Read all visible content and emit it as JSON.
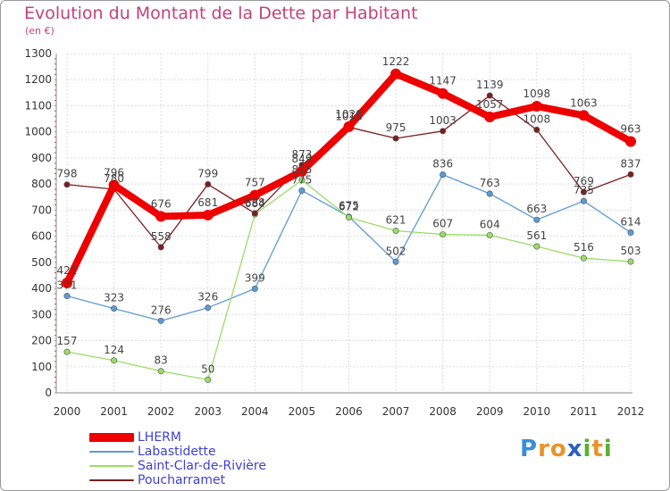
{
  "title": "Evolution du Montant de la Dette par Habitant",
  "subtitle": "(en €)",
  "logo": {
    "letters": [
      "P",
      "r",
      "o",
      "x",
      "i",
      "t",
      "i"
    ],
    "colors": [
      "#3a8ed8",
      "#e8932a",
      "#e8932a",
      "#2a60c0",
      "#5ab030",
      "#e8932a",
      "#5ab030"
    ]
  },
  "chart_data": {
    "type": "line",
    "title": "Evolution du Montant de la Dette par Habitant",
    "ylabel": "(en €)",
    "xlabel": "",
    "x": [
      "2000",
      "2001",
      "2002",
      "2003",
      "2004",
      "2005",
      "2006",
      "2007",
      "2008",
      "2009",
      "2010",
      "2011",
      "2012"
    ],
    "ylim": [
      0,
      1300
    ],
    "yticks": [
      "0",
      "100",
      "200",
      "300",
      "400",
      "500",
      "600",
      "700",
      "800",
      "900",
      "1000",
      "1100",
      "1200",
      "1300"
    ],
    "grid": true,
    "legend": "bottom-left",
    "series": [
      {
        "name": "LHERM",
        "color": "#ee0000",
        "values": [
          421,
          796,
          676,
          681,
          757,
          849,
          1020,
          1222,
          1147,
          1057,
          1098,
          1063,
          963
        ],
        "labels": [
          "421",
          "796",
          "676",
          "681",
          "757",
          "849",
          "1020",
          "1222",
          "1147",
          "1057",
          "1098",
          "1063",
          "963"
        ]
      },
      {
        "name": "Labastidette",
        "color": "#5b9bd5",
        "values": [
          371,
          323,
          276,
          326,
          399,
          775,
          675,
          502,
          836,
          763,
          663,
          735,
          614
        ],
        "labels": [
          "371",
          "323",
          "276",
          "326",
          "399",
          "775",
          "675",
          "502",
          "836",
          "763",
          "663",
          "735",
          "614"
        ]
      },
      {
        "name": "Saint-Clar-de-Rivière",
        "color": "#99dd66",
        "values": [
          157,
          124,
          83,
          50,
          684,
          815,
          672,
          621,
          607,
          604,
          561,
          516,
          503
        ],
        "labels": [
          "157",
          "124",
          "83",
          "50",
          "684",
          "815",
          "672",
          "621",
          "607",
          "604",
          "561",
          "516",
          "503"
        ]
      },
      {
        "name": "Poucharramet",
        "color": "#7a1f1f",
        "values": [
          798,
          780,
          558,
          799,
          688,
          873,
          1018,
          975,
          1003,
          1139,
          1008,
          769,
          837
        ],
        "labels": [
          "798",
          "780",
          "558",
          "799",
          "688",
          "873",
          "1018",
          "975",
          "1003",
          "1139",
          "1008",
          "769",
          "837"
        ]
      }
    ]
  }
}
